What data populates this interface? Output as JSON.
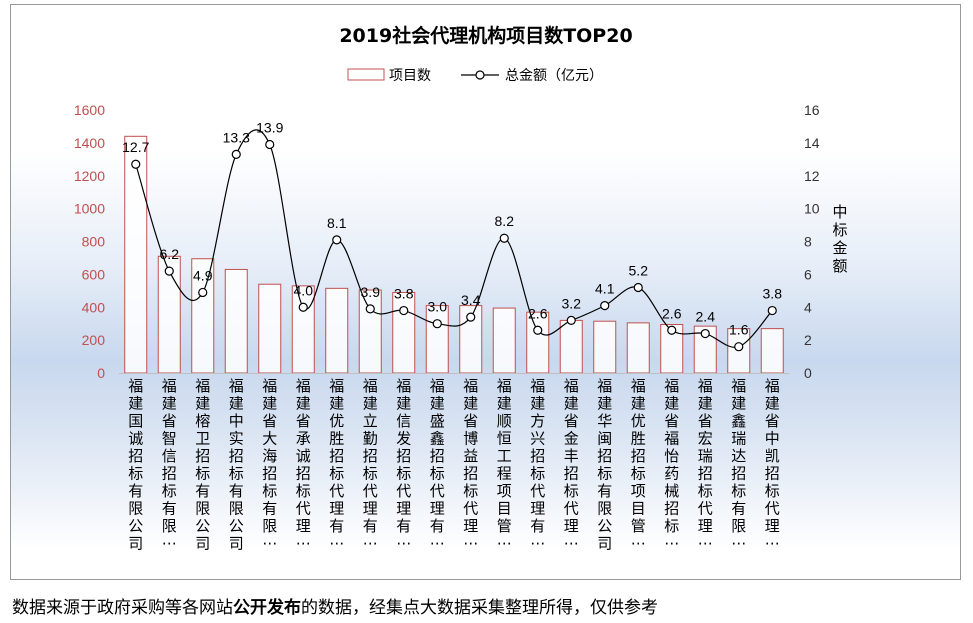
{
  "chart_data": {
    "type": "bar",
    "title": "2019社会代理机构项目数TOP20",
    "categories": [
      "福建国诚招标有限公司",
      "福建省智信招标有限…",
      "福建榕卫招标有限公司",
      "福建中实招标有限公司",
      "福建省大海招标有限…",
      "福建省承诚招标代理…",
      "福建优胜招标代理有…",
      "福建立勤招标代理有…",
      "福建信发招标代理有…",
      "福建盛鑫招标代理有…",
      "福建省博益招标代理…",
      "福建顺恒工程项目管…",
      "福建方兴招标代理有…",
      "福建省金丰招标代理…",
      "福建华闽招标有限公司",
      "福建优胜招标项目管…",
      "福建省福怡药械招标…",
      "福建省宏瑞招标代理…",
      "福建鑫瑞达招标有限…",
      "福建省中凯招标代理…"
    ],
    "series": [
      {
        "name": "项目数",
        "kind": "bar",
        "axis": "left",
        "values": [
          1440,
          710,
          695,
          630,
          540,
          530,
          515,
          505,
          490,
          410,
          410,
          395,
          370,
          320,
          315,
          305,
          295,
          285,
          270,
          270
        ]
      },
      {
        "name": "总金额（亿元）",
        "kind": "line",
        "axis": "right",
        "values": [
          12.7,
          6.2,
          4.9,
          13.3,
          13.9,
          4.0,
          8.1,
          3.9,
          3.8,
          3.0,
          3.4,
          8.2,
          2.6,
          3.2,
          4.1,
          5.2,
          2.6,
          2.4,
          1.6,
          3.8
        ],
        "data_labels": [
          "12.7",
          "6.2",
          "4.9",
          "13.3",
          "13.9",
          "4.0",
          "8.1",
          "3.9",
          "3.8",
          "3.0",
          "3.4",
          "8.2",
          "2.6",
          "3.2",
          "4.1",
          "5.2",
          "2.6",
          "2.4",
          "1.6",
          "3.8"
        ]
      }
    ],
    "left_axis": {
      "ylim": [
        0,
        1600
      ],
      "ticks": [
        "0",
        "200",
        "400",
        "600",
        "800",
        "1000",
        "1200",
        "1400",
        "1600"
      ]
    },
    "right_axis": {
      "ylim": [
        0,
        16
      ],
      "ticks": [
        "0",
        "2",
        "4",
        "6",
        "8",
        "10",
        "12",
        "14",
        "16"
      ],
      "label": "中标金额"
    },
    "legend_position": "top-center",
    "grid": false
  },
  "colors": {
    "bar_stroke": "#c0504d",
    "bar_fill": "#ffffff",
    "line": "#000000",
    "left_tick_text": "#c0504d",
    "right_tick_text": "#333333"
  },
  "footer": {
    "part1": "数据来源于政府采购等各网站",
    "bold": "公开发布",
    "part2": "的数据，经集点大数据采集整理所得，仅供参考"
  }
}
